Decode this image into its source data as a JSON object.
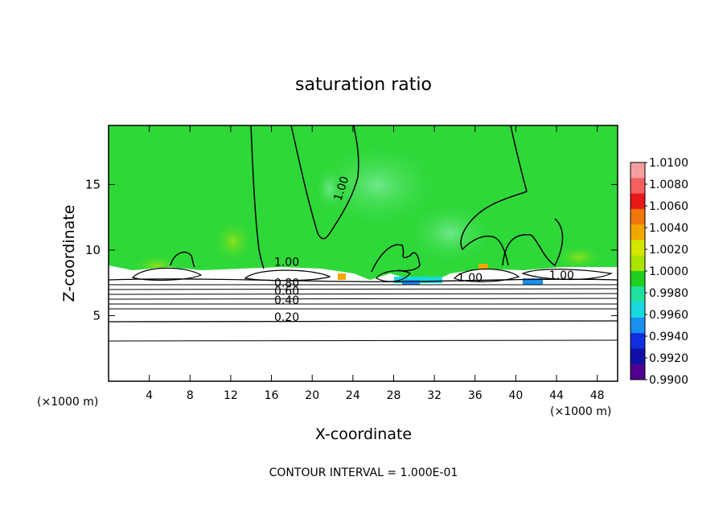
{
  "chart_data": {
    "type": "heatmap",
    "title": "saturation ratio",
    "xlabel": "X-coordinate",
    "ylabel": "Z-coordinate",
    "x_unit_label_left": "(×1000 m)",
    "x_unit_label_right": "(×1000 m)",
    "footer": "CONTOUR INTERVAL = 1.000E-01",
    "xlim": [
      0,
      50
    ],
    "ylim": [
      0,
      19.5
    ],
    "x_ticks": [
      4,
      8,
      12,
      16,
      20,
      24,
      28,
      32,
      36,
      40,
      44,
      48
    ],
    "x_tick_labels": [
      "4",
      "8",
      "12",
      "16",
      "20",
      "24",
      "28",
      "32",
      "36",
      "40",
      "44",
      "48"
    ],
    "y_ticks": [
      5,
      10,
      15
    ],
    "y_tick_labels": [
      "5",
      "10",
      "15"
    ],
    "contour_labels": [
      {
        "text": "1.00",
        "x": 17.5,
        "y": 8.8
      },
      {
        "text": "0.80",
        "x": 17.5,
        "y": 7.2
      },
      {
        "text": "0.60",
        "x": 17.5,
        "y": 6.6
      },
      {
        "text": "0.40",
        "x": 17.5,
        "y": 5.9
      },
      {
        "text": "0.20",
        "x": 17.5,
        "y": 4.6
      },
      {
        "text": "1.00",
        "x": 23.2,
        "y": 14.6
      },
      {
        "text": "1.00",
        "x": 35.5,
        "y": 7.6
      },
      {
        "text": "1.00",
        "x": 44.5,
        "y": 7.8
      }
    ],
    "colorbar": {
      "labels": [
        "1.0100",
        "1.0080",
        "1.0060",
        "1.0040",
        "1.0020",
        "1.0000",
        "0.9980",
        "0.9960",
        "0.9940",
        "0.9920",
        "0.9900"
      ],
      "colors": [
        "#f4a0a0",
        "#f46060",
        "#e81818",
        "#f0780a",
        "#f0a800",
        "#d2e600",
        "#aae400",
        "#20d020",
        "#20e0a0",
        "#18d8e0",
        "#1890f0",
        "#1030e0",
        "#1010a8",
        "#500090"
      ]
    },
    "dominant_fill_color": "#2ed838",
    "below_cloud_fill_color": "#ffffff"
  }
}
